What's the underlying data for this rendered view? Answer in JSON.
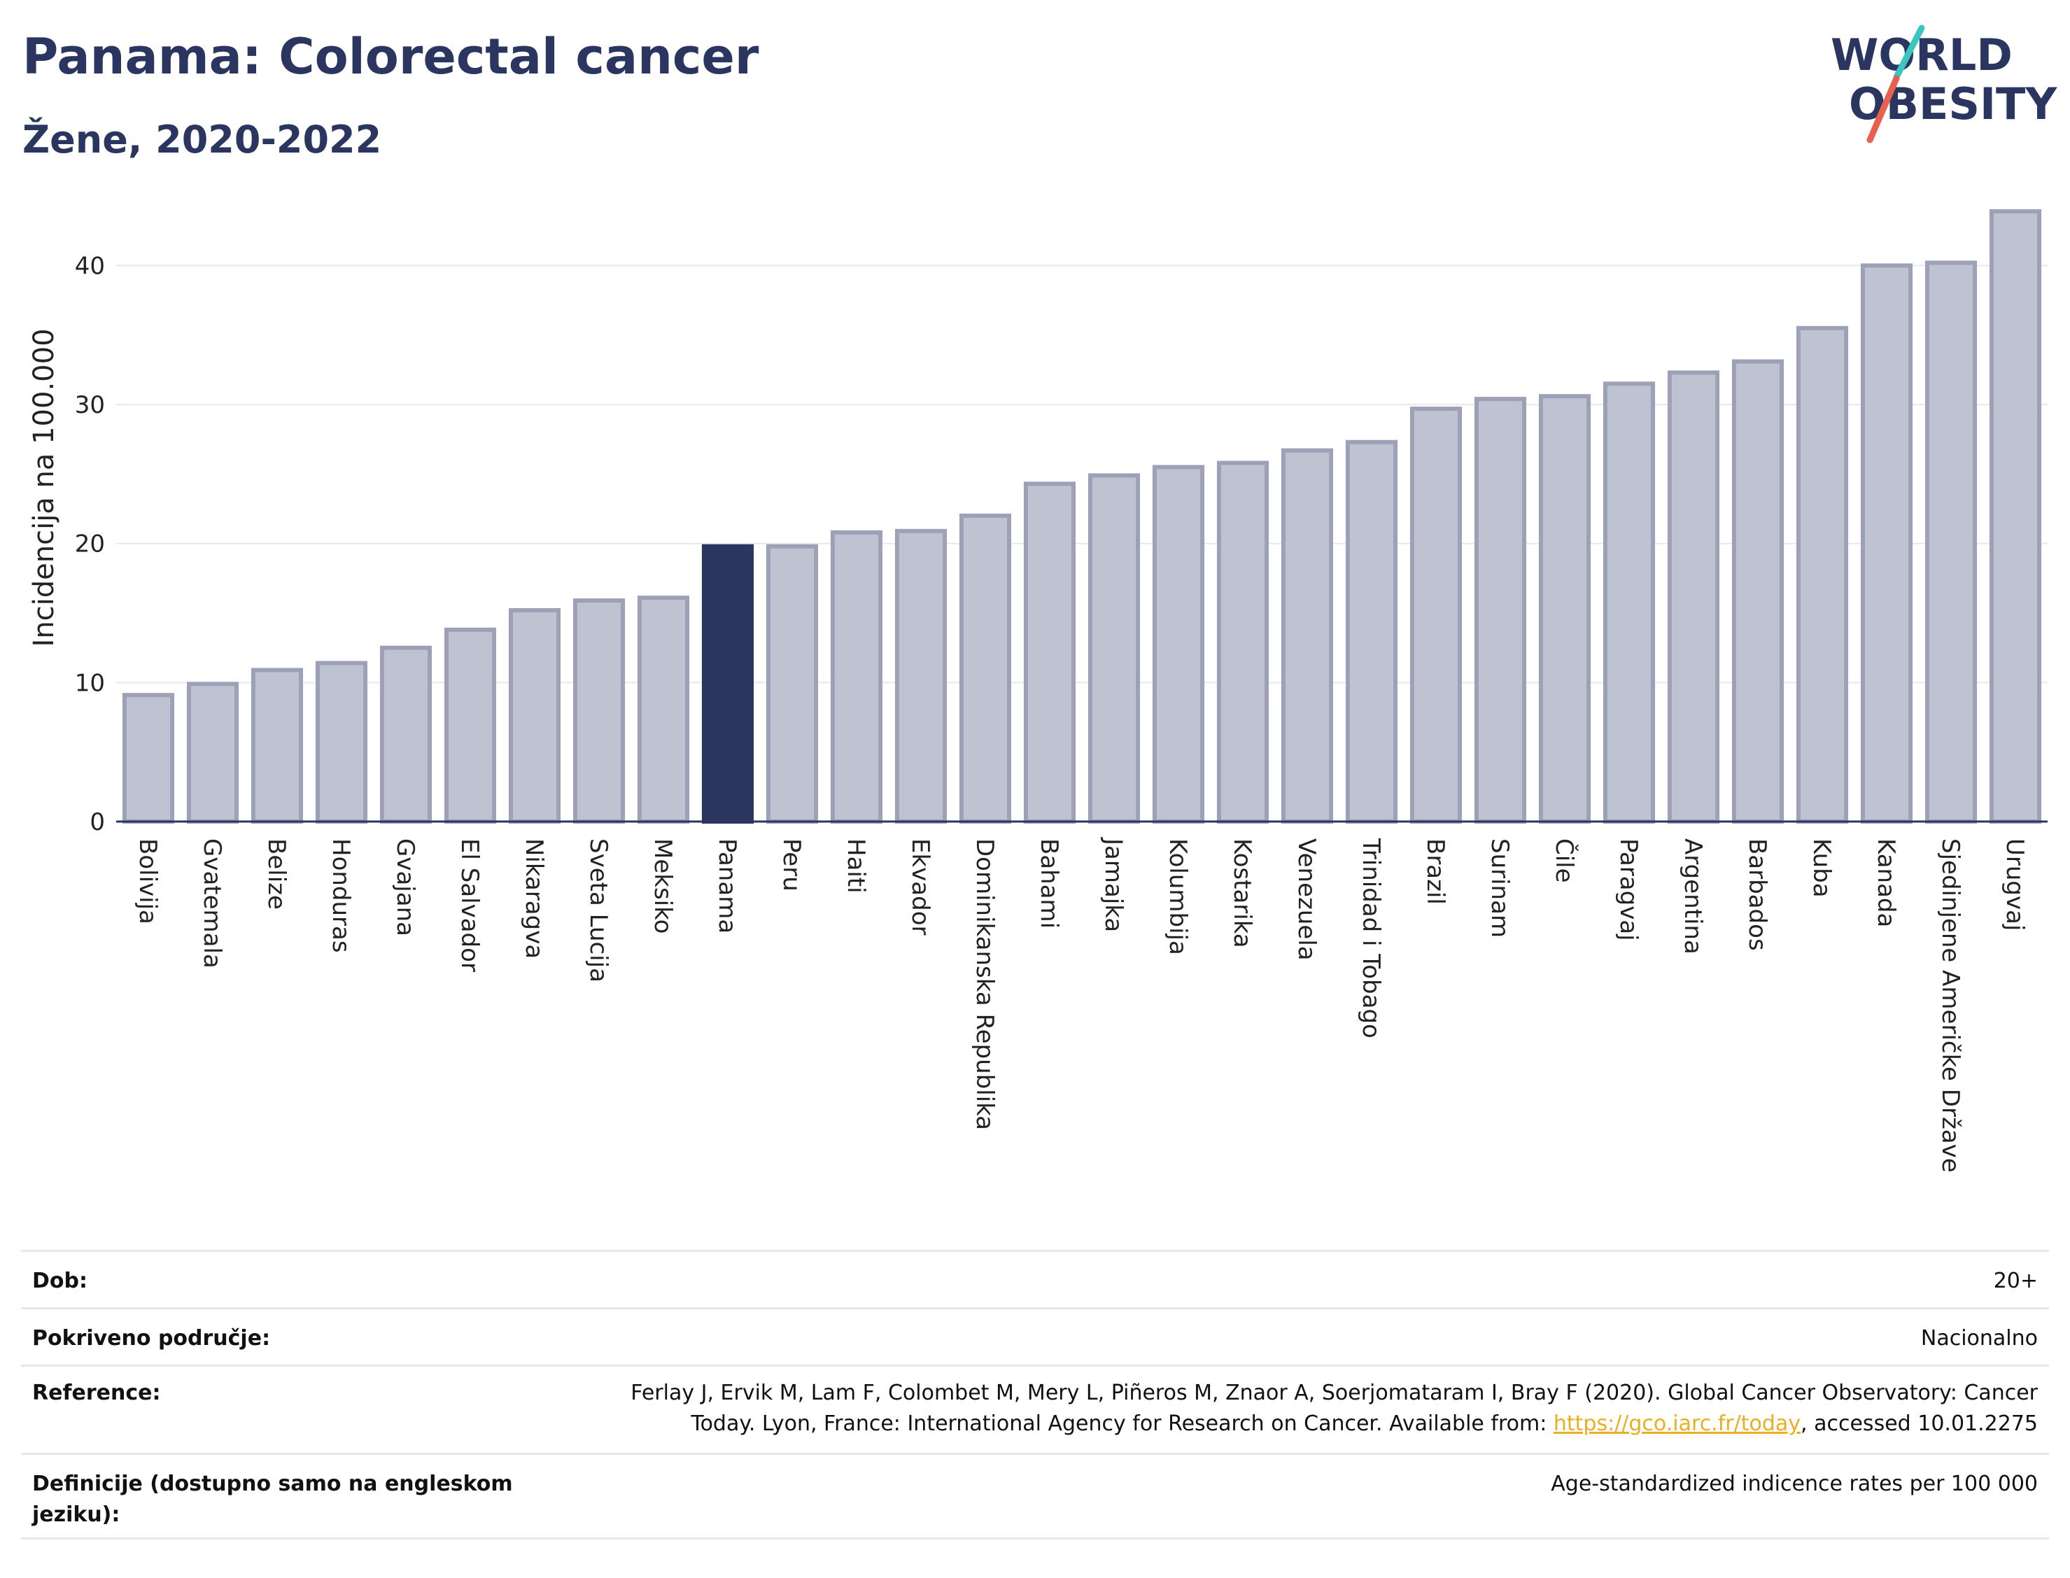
{
  "header": {
    "title": "Panama: Colorectal cancer",
    "subtitle": "Žene, 2020-2022"
  },
  "logo": {
    "line1": "WORLD",
    "line2": "OBESITY"
  },
  "colors": {
    "highlight": "#2a3560",
    "bar": "#bfc2d0",
    "bar_border": "#9da1b8",
    "text": "#2a3560",
    "accent_teal": "#3cc6c0",
    "accent_red": "#e8604f",
    "link": "#e8b021"
  },
  "chart_data": {
    "type": "bar",
    "title": "Panama: Colorectal cancer",
    "subtitle": "Žene, 2020-2022",
    "ylabel": "Incidencija na 100.000",
    "xlabel": "",
    "ylim": [
      0,
      44
    ],
    "yticks": [
      0,
      10,
      20,
      30,
      40
    ],
    "grid": true,
    "highlight": "Panama",
    "categories": [
      "Bolivija",
      "Gvatemala",
      "Belize",
      "Honduras",
      "Gvajana",
      "El Salvador",
      "Nikaragva",
      "Sveta Lucija",
      "Meksiko",
      "Panama",
      "Peru",
      "Haiti",
      "Ekvador",
      "Dominikanska Republika",
      "Bahami",
      "Jamajka",
      "Kolumbija",
      "Kostarika",
      "Venezuela",
      "Trinidad i Tobago",
      "Brazil",
      "Surinam",
      "Čile",
      "Paragvaj",
      "Argentina",
      "Barbados",
      "Kuba",
      "Kanada",
      "Sjedinjene Američke Države",
      "Urugvaj"
    ],
    "values": [
      9.1,
      9.9,
      10.9,
      11.4,
      12.5,
      13.8,
      15.2,
      15.9,
      16.1,
      19.8,
      19.8,
      20.8,
      20.9,
      22.0,
      24.3,
      24.9,
      25.5,
      25.8,
      26.7,
      27.3,
      29.7,
      30.4,
      30.6,
      31.5,
      32.3,
      33.1,
      35.5,
      40.0,
      40.2,
      43.9
    ]
  },
  "meta": {
    "rows": [
      {
        "label": "Dob:",
        "value": "20+"
      },
      {
        "label": "Pokriveno područje:",
        "value": "Nacionalno"
      },
      {
        "label": "Reference:",
        "value_pre": "Ferlay J, Ervik M, Lam F, Colombet M, Mery L, Piñeros M, Znaor A, Soerjomataram I, Bray F (2020). Global Cancer Observatory: Cancer Today. Lyon, France: International Agency for Research on Cancer. Available from: ",
        "link": "https://gco.iarc.fr/today",
        "value_post": ", accessed 10.01.2275"
      },
      {
        "label": "Definicije (dostupno samo na engleskom jeziku):",
        "value": "Age-standardized indicence rates per 100 000"
      }
    ]
  }
}
